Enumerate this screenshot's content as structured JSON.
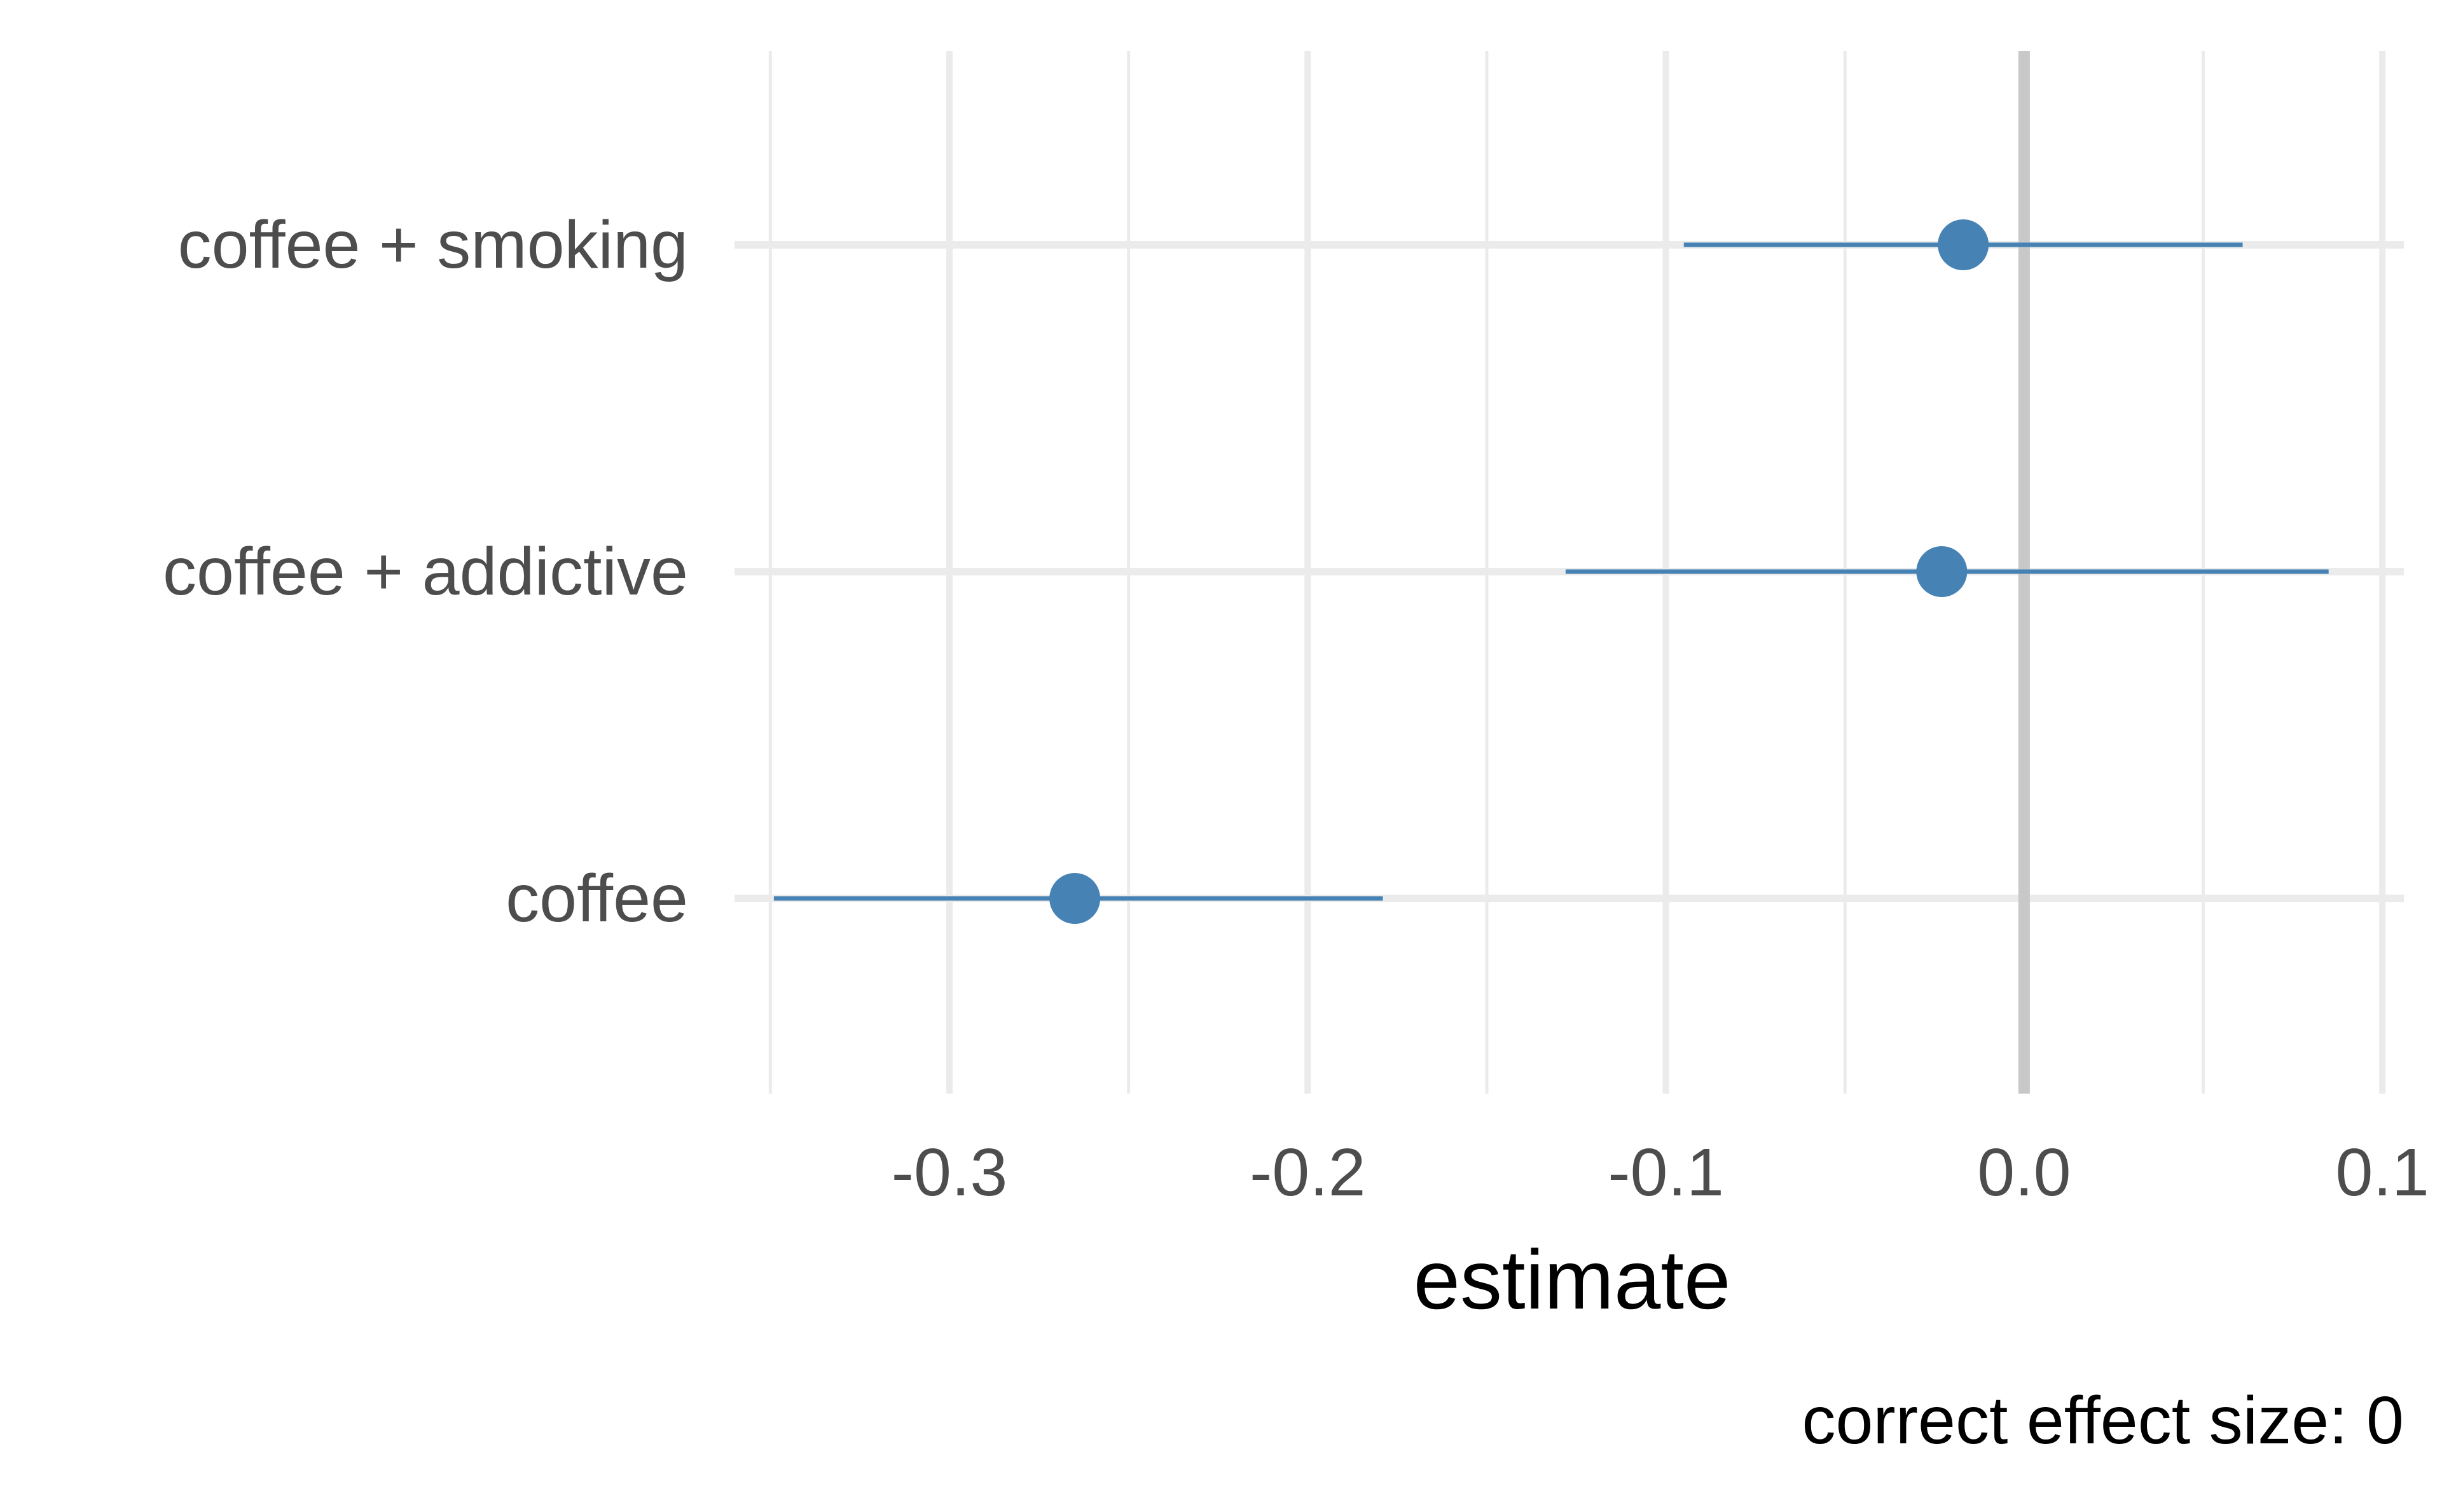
{
  "chart_data": {
    "type": "forest",
    "xlabel": "estimate",
    "caption": "correct effect size: 0",
    "xlim": [
      -0.36,
      0.106
    ],
    "x_ticks": [
      -0.3,
      -0.2,
      -0.1,
      0.0,
      0.1
    ],
    "x_tick_labels": [
      "-0.3",
      "-0.2",
      "-0.1",
      "0.0",
      "0.1"
    ],
    "x_minor_breaks": [
      -0.35,
      -0.25,
      -0.15,
      -0.05,
      0.05
    ],
    "reference_line": 0.0,
    "grid": true,
    "categories": [
      "coffee + smoking",
      "coffee + addictive",
      "coffee"
    ],
    "series": [
      {
        "estimates": [
          -0.017,
          -0.023,
          -0.265
        ],
        "ci_low": [
          -0.095,
          -0.128,
          -0.349
        ],
        "ci_high": [
          0.061,
          0.085,
          -0.179
        ]
      }
    ],
    "colors": {
      "point": "#4682B4",
      "grid": "#EBEBEB",
      "reference": "#C8C8C8",
      "tick_text": "#4D4D4D",
      "title_text": "#000000"
    }
  }
}
